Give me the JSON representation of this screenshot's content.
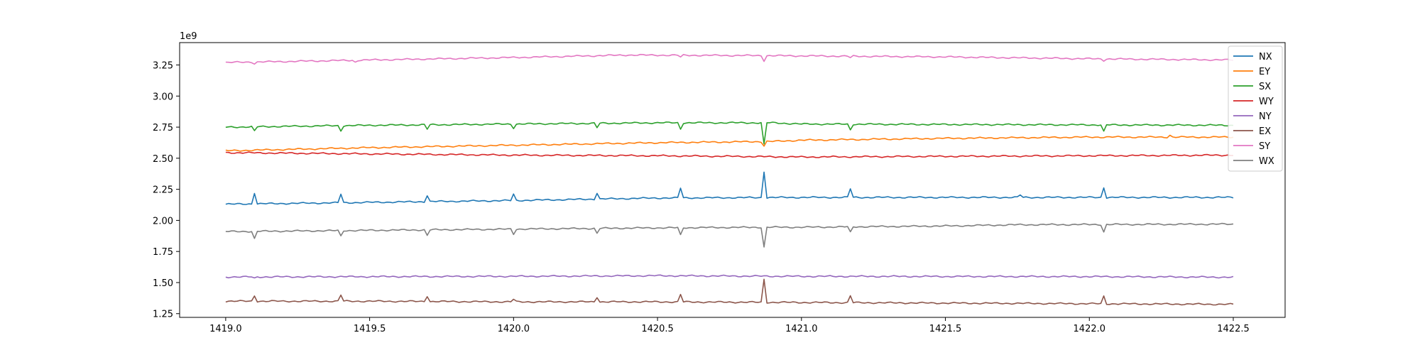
{
  "chart_data": {
    "type": "line",
    "title": "",
    "xlabel": "",
    "ylabel": "",
    "offset_text": "1e9",
    "xlim": [
      1418.84,
      1422.68
    ],
    "ylim": [
      1.22,
      3.43
    ],
    "xticks": [
      1419.0,
      1419.5,
      1420.0,
      1420.5,
      1421.0,
      1421.5,
      1422.0,
      1422.5
    ],
    "xtick_labels": [
      "1419.0",
      "1419.5",
      "1420.0",
      "1420.5",
      "1421.0",
      "1421.5",
      "1422.0",
      "1422.5"
    ],
    "yticks": [
      1.25,
      1.5,
      1.75,
      2.0,
      2.25,
      2.5,
      2.75,
      3.0,
      3.25
    ],
    "ytick_labels": [
      "1.25",
      "1.50",
      "1.75",
      "2.00",
      "2.25",
      "2.50",
      "2.75",
      "3.00",
      "3.25"
    ],
    "grid": false,
    "legend_position": "top-right",
    "x_range": [
      1419.0,
      1422.5
    ],
    "series": [
      {
        "name": "NX",
        "color": "#1f77b4",
        "trend": [
          [
            1419.0,
            2.13
          ],
          [
            1420.0,
            2.16
          ],
          [
            1420.5,
            2.18
          ],
          [
            1421.0,
            2.185
          ],
          [
            1422.5,
            2.185
          ]
        ],
        "events": [
          [
            1419.1,
            0.09
          ],
          [
            1419.4,
            0.07
          ],
          [
            1419.7,
            0.05
          ],
          [
            1420.0,
            0.05
          ],
          [
            1420.29,
            0.05
          ],
          [
            1420.58,
            0.08
          ],
          [
            1420.87,
            0.21
          ],
          [
            1421.17,
            0.07
          ],
          [
            1421.76,
            0.02
          ],
          [
            1422.05,
            0.08
          ]
        ]
      },
      {
        "name": "EY",
        "color": "#ff7f0e",
        "trend": [
          [
            1419.0,
            2.56
          ],
          [
            1419.5,
            2.585
          ],
          [
            1420.0,
            2.605
          ],
          [
            1420.5,
            2.625
          ],
          [
            1420.9,
            2.635
          ],
          [
            1421.0,
            2.645
          ],
          [
            1421.5,
            2.66
          ],
          [
            1422.0,
            2.67
          ],
          [
            1422.5,
            2.67
          ]
        ],
        "events": [
          [
            1420.87,
            -0.035
          ],
          [
            1422.28,
            0.015
          ]
        ]
      },
      {
        "name": "SX",
        "color": "#2ca02c",
        "trend": [
          [
            1419.0,
            2.75
          ],
          [
            1419.5,
            2.765
          ],
          [
            1420.0,
            2.775
          ],
          [
            1420.5,
            2.785
          ],
          [
            1420.9,
            2.785
          ],
          [
            1421.0,
            2.775
          ],
          [
            1422.5,
            2.765
          ]
        ],
        "events": [
          [
            1419.1,
            -0.035
          ],
          [
            1419.4,
            -0.04
          ],
          [
            1419.7,
            -0.035
          ],
          [
            1420.0,
            -0.03
          ],
          [
            1420.29,
            -0.035
          ],
          [
            1420.58,
            -0.05
          ],
          [
            1420.87,
            -0.175
          ],
          [
            1421.17,
            -0.045
          ],
          [
            1422.05,
            -0.055
          ]
        ]
      },
      {
        "name": "WY",
        "color": "#d62728",
        "trend": [
          [
            1419.0,
            2.545
          ],
          [
            1419.5,
            2.535
          ],
          [
            1420.0,
            2.525
          ],
          [
            1420.5,
            2.52
          ],
          [
            1421.0,
            2.51
          ],
          [
            1421.5,
            2.515
          ],
          [
            1422.0,
            2.52
          ],
          [
            1422.5,
            2.525
          ]
        ],
        "events": []
      },
      {
        "name": "NY",
        "color": "#9467bd",
        "trend": [
          [
            1419.0,
            1.545
          ],
          [
            1420.0,
            1.55
          ],
          [
            1420.5,
            1.555
          ],
          [
            1421.0,
            1.55
          ],
          [
            1422.0,
            1.548
          ],
          [
            1422.5,
            1.543
          ]
        ],
        "events": [
          [
            1419.1,
            -0.012
          ]
        ]
      },
      {
        "name": "EX",
        "color": "#8c564b",
        "trend": [
          [
            1419.0,
            1.35
          ],
          [
            1419.5,
            1.35
          ],
          [
            1420.0,
            1.345
          ],
          [
            1420.5,
            1.345
          ],
          [
            1421.0,
            1.34
          ],
          [
            1421.5,
            1.335
          ],
          [
            1422.0,
            1.33
          ],
          [
            1422.5,
            1.325
          ]
        ],
        "events": [
          [
            1419.1,
            0.045
          ],
          [
            1419.4,
            0.05
          ],
          [
            1419.7,
            0.045
          ],
          [
            1420.0,
            0.02
          ],
          [
            1420.29,
            0.04
          ],
          [
            1420.58,
            0.06
          ],
          [
            1420.87,
            0.185
          ],
          [
            1421.17,
            0.055
          ],
          [
            1422.05,
            0.06
          ]
        ]
      },
      {
        "name": "SY",
        "color": "#e377c2",
        "trend": [
          [
            1419.0,
            3.27
          ],
          [
            1419.5,
            3.29
          ],
          [
            1420.0,
            3.31
          ],
          [
            1420.4,
            3.33
          ],
          [
            1420.9,
            3.325
          ],
          [
            1421.5,
            3.315
          ],
          [
            1422.0,
            3.3
          ],
          [
            1422.5,
            3.29
          ]
        ],
        "events": [
          [
            1419.1,
            -0.012
          ],
          [
            1419.45,
            -0.015
          ],
          [
            1420.58,
            -0.015
          ],
          [
            1420.87,
            -0.04
          ],
          [
            1421.17,
            -0.012
          ],
          [
            1422.05,
            -0.012
          ]
        ]
      },
      {
        "name": "WX",
        "color": "#7f7f7f",
        "trend": [
          [
            1419.0,
            1.91
          ],
          [
            1419.5,
            1.92
          ],
          [
            1420.0,
            1.93
          ],
          [
            1420.5,
            1.94
          ],
          [
            1420.9,
            1.945
          ],
          [
            1421.0,
            1.945
          ],
          [
            1421.5,
            1.955
          ],
          [
            1421.75,
            1.965
          ],
          [
            1422.5,
            1.97
          ]
        ],
        "events": [
          [
            1419.1,
            -0.06
          ],
          [
            1419.4,
            -0.045
          ],
          [
            1419.7,
            -0.045
          ],
          [
            1420.0,
            -0.04
          ],
          [
            1420.29,
            -0.04
          ],
          [
            1420.58,
            -0.06
          ],
          [
            1420.87,
            -0.16
          ],
          [
            1421.17,
            -0.045
          ],
          [
            1422.05,
            -0.06
          ]
        ]
      }
    ]
  }
}
